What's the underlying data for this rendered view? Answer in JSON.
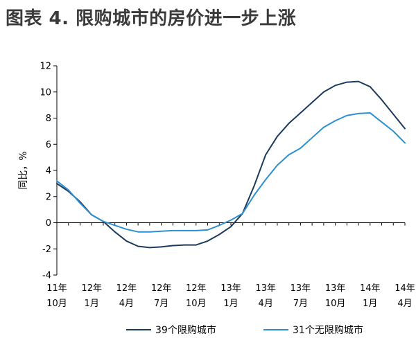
{
  "figure_title": "图表 4. 限购城市的房价进一步上涨",
  "colors": {
    "series_1": "#1b3a5c",
    "series_2": "#2c8fd2",
    "axis": "#000000",
    "title": "#3a3a3a"
  },
  "chart_data": {
    "type": "line",
    "title": "图表 4. 限购城市的房价进一步上涨",
    "ylabel": "同比，%",
    "xlabel": "",
    "ylim": [
      -4,
      12
    ],
    "y_ticks": [
      -4,
      -2,
      0,
      2,
      4,
      6,
      8,
      10,
      12
    ],
    "grid": false,
    "legend_position": "bottom",
    "x_ticks": [
      {
        "index": 0,
        "line1": "11年",
        "line2": "10月"
      },
      {
        "index": 3,
        "line1": "12年",
        "line2": "1月"
      },
      {
        "index": 6,
        "line1": "12年",
        "line2": "4月"
      },
      {
        "index": 9,
        "line1": "12年",
        "line2": "7月"
      },
      {
        "index": 12,
        "line1": "12年",
        "line2": "10月"
      },
      {
        "index": 15,
        "line1": "13年",
        "line2": "1月"
      },
      {
        "index": 18,
        "line1": "13年",
        "line2": "4月"
      },
      {
        "index": 21,
        "line1": "13年",
        "line2": "7月"
      },
      {
        "index": 24,
        "line1": "13年",
        "line2": "10月"
      },
      {
        "index": 27,
        "line1": "14年",
        "line2": "1月"
      },
      {
        "index": 30,
        "line1": "14年",
        "line2": "4月"
      }
    ],
    "x": [
      "11年10月",
      "11年11月",
      "11年12月",
      "12年1月",
      "12年2月",
      "12年3月",
      "12年4月",
      "12年5月",
      "12年6月",
      "12年7月",
      "12年8月",
      "12年9月",
      "12年10月",
      "12年11月",
      "12年12月",
      "13年1月",
      "13年2月",
      "13年3月",
      "13年4月",
      "13年5月",
      "13年6月",
      "13年7月",
      "13年8月",
      "13年9月",
      "13年10月",
      "13年11月",
      "13年12月",
      "14年1月",
      "14年2月",
      "14年3月",
      "14年4月"
    ],
    "series": [
      {
        "name": "39个限购城市",
        "color": "#1b3a5c",
        "values": [
          3.0,
          2.4,
          1.6,
          0.6,
          0.1,
          -0.7,
          -1.4,
          -1.8,
          -1.9,
          -1.85,
          -1.75,
          -1.7,
          -1.7,
          -1.4,
          -0.9,
          -0.3,
          0.7,
          2.8,
          5.2,
          6.6,
          7.6,
          8.4,
          9.2,
          10.0,
          10.5,
          10.75,
          10.8,
          10.4,
          9.4,
          8.3,
          7.2
        ]
      },
      {
        "name": "31个无限购城市",
        "color": "#2c8fd2",
        "values": [
          3.2,
          2.5,
          1.5,
          0.6,
          0.1,
          -0.2,
          -0.5,
          -0.7,
          -0.7,
          -0.65,
          -0.6,
          -0.6,
          -0.6,
          -0.55,
          -0.2,
          0.2,
          0.7,
          2.1,
          3.3,
          4.4,
          5.2,
          5.7,
          6.5,
          7.3,
          7.8,
          8.2,
          8.35,
          8.4,
          7.7,
          7.0,
          6.1
        ]
      }
    ]
  }
}
